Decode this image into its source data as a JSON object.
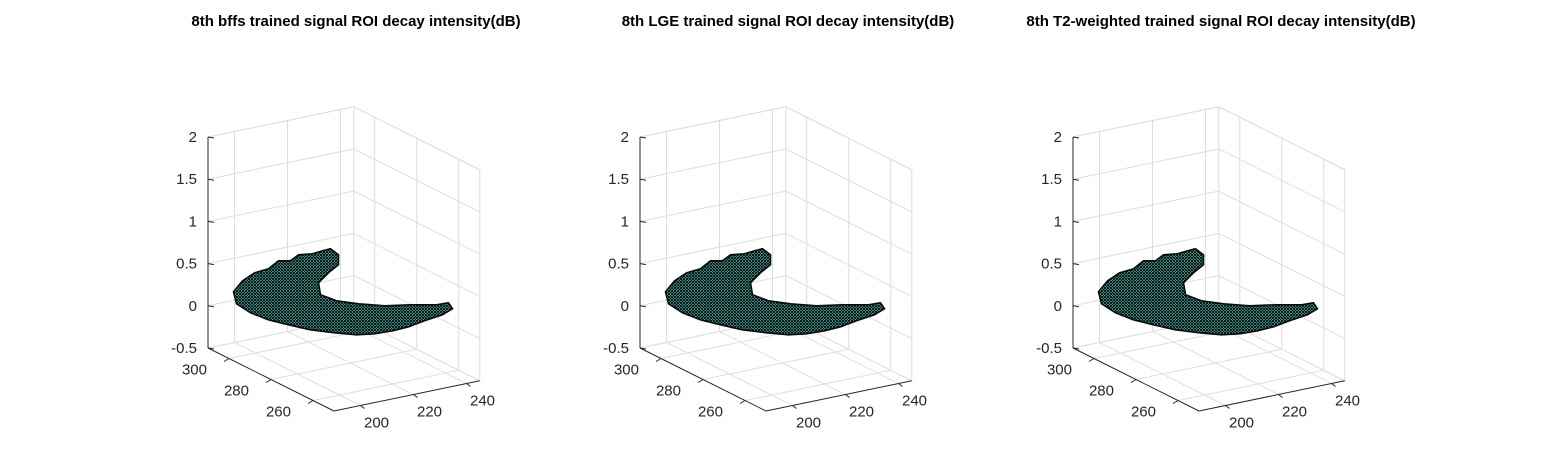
{
  "chart_data": [
    {
      "type": "surface3d",
      "title": "8th bffs trained signal ROI decay intensity(dB)",
      "xlabel": "",
      "ylabel": "",
      "zlabel": "",
      "x_ticks": [
        "200",
        "220",
        "240"
      ],
      "y_ticks": [
        "260",
        "280",
        "300"
      ],
      "z_ticks": [
        "-0.5",
        "0",
        "0.5",
        "1",
        "1.5",
        "2"
      ],
      "xlim": [
        190,
        245
      ],
      "ylim": [
        250,
        310
      ],
      "zlim": [
        -0.5,
        2
      ],
      "surface_z": 0,
      "surface_color": "#4fd3c4",
      "edge_color": "#000000",
      "grid": true
    },
    {
      "type": "surface3d",
      "title": "8th LGE trained signal ROI decay intensity(dB)",
      "xlabel": "",
      "ylabel": "",
      "zlabel": "",
      "x_ticks": [
        "200",
        "220",
        "240"
      ],
      "y_ticks": [
        "260",
        "280",
        "300"
      ],
      "z_ticks": [
        "-0.5",
        "0",
        "0.5",
        "1",
        "1.5",
        "2"
      ],
      "xlim": [
        190,
        245
      ],
      "ylim": [
        250,
        310
      ],
      "zlim": [
        -0.5,
        2
      ],
      "surface_z": 0,
      "surface_color": "#4fd3c4",
      "edge_color": "#000000",
      "grid": true
    },
    {
      "type": "surface3d",
      "title": "8th T2-weighted trained signal ROI decay intensity(dB)",
      "xlabel": "",
      "ylabel": "",
      "zlabel": "",
      "x_ticks": [
        "200",
        "220",
        "240"
      ],
      "y_ticks": [
        "260",
        "280",
        "300"
      ],
      "z_ticks": [
        "-0.5",
        "0",
        "0.5",
        "1",
        "1.5",
        "2"
      ],
      "xlim": [
        190,
        245
      ],
      "ylim": [
        250,
        310
      ],
      "zlim": [
        -0.5,
        2
      ],
      "surface_z": 0,
      "surface_color": "#4fd3c4",
      "edge_color": "#000000",
      "grid": true
    }
  ]
}
